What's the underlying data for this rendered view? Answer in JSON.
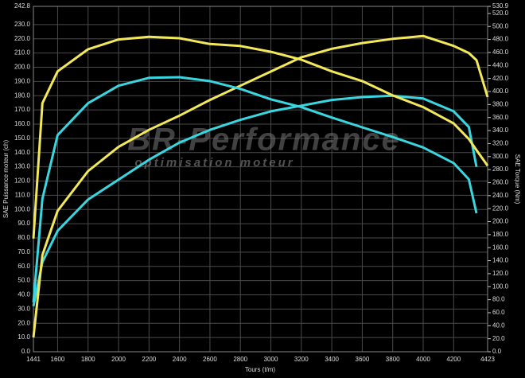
{
  "chart_data": {
    "type": "line",
    "xlabel": "Tours (t/m)",
    "ylabel": "SAE Puissance moteur (ch)",
    "y2label": "SAE Torque (Nm)",
    "annotations": [
      "BR-Performance",
      "optimisation moteur"
    ],
    "grid": true,
    "x": [
      1441,
      1500,
      1600,
      1800,
      2000,
      2200,
      2400,
      2600,
      2800,
      3000,
      3200,
      3400,
      3600,
      3800,
      4000,
      4200,
      4300,
      4350,
      4423
    ],
    "xlim": [
      1441,
      4423
    ],
    "xticks": [
      1441,
      1600,
      1800,
      2000,
      2200,
      2400,
      2600,
      2800,
      3000,
      3200,
      3400,
      3600,
      3800,
      4000,
      4200,
      4423
    ],
    "ylim": [
      0,
      242.8
    ],
    "yticks": [
      {
        "value": 0,
        "label": "0.0"
      },
      {
        "value": 10,
        "label": "10.0"
      },
      {
        "value": 20,
        "label": "20.0"
      },
      {
        "value": 30,
        "label": "30.0"
      },
      {
        "value": 40,
        "label": "40.0"
      },
      {
        "value": 50,
        "label": "50.0"
      },
      {
        "value": 60,
        "label": "60.0"
      },
      {
        "value": 70,
        "label": "70.0"
      },
      {
        "value": 80,
        "label": "80.0"
      },
      {
        "value": 90,
        "label": "90.0"
      },
      {
        "value": 100,
        "label": "100.0"
      },
      {
        "value": 110,
        "label": "110.0"
      },
      {
        "value": 120,
        "label": "120.0"
      },
      {
        "value": 130,
        "label": "130.0"
      },
      {
        "value": 140,
        "label": "140.0"
      },
      {
        "value": 150,
        "label": "150.0"
      },
      {
        "value": 160,
        "label": "160.0"
      },
      {
        "value": 170,
        "label": "170.0"
      },
      {
        "value": 180,
        "label": "180.0"
      },
      {
        "value": 190,
        "label": "190.0"
      },
      {
        "value": 200,
        "label": "200.0"
      },
      {
        "value": 210,
        "label": "210.0"
      },
      {
        "value": 220,
        "label": "220.0"
      },
      {
        "value": 230,
        "label": "230.0"
      },
      242.8
    ],
    "y2lim": [
      0,
      530.9
    ],
    "y2ticks": [
      {
        "value": 0,
        "label": "0.0"
      },
      {
        "value": 20,
        "label": "20.0"
      },
      {
        "value": 40,
        "label": "40.0"
      },
      {
        "value": 60,
        "label": "60.0"
      },
      {
        "value": 80,
        "label": "80.0"
      },
      {
        "value": 100,
        "label": "100.0"
      },
      {
        "value": 120,
        "label": "120.0"
      },
      {
        "value": 140,
        "label": "140.0"
      },
      {
        "value": 160,
        "label": "160.0"
      },
      {
        "value": 180,
        "label": "180.0"
      },
      {
        "value": 200,
        "label": "200.0"
      },
      {
        "value": 220,
        "label": "220.0"
      },
      {
        "value": 240,
        "label": "240.0"
      },
      {
        "value": 260,
        "label": "260.0"
      },
      {
        "value": 280,
        "label": "280.0"
      },
      {
        "value": 300,
        "label": "300.0"
      },
      {
        "value": 320,
        "label": "320.0"
      },
      {
        "value": 340,
        "label": "340.0"
      },
      {
        "value": 360,
        "label": "360.0"
      },
      {
        "value": 380,
        "label": "380.0"
      },
      {
        "value": 400,
        "label": "400.0"
      },
      {
        "value": 420,
        "label": "420.0"
      },
      {
        "value": 440,
        "label": "440.0"
      },
      {
        "value": 460,
        "label": "460.0"
      },
      {
        "value": 480,
        "label": "480.0"
      },
      {
        "value": 500,
        "label": "500.0"
      },
      {
        "value": 520,
        "label": "520.0"
      },
      530.9
    ],
    "series": [
      {
        "color": "#3ad6e0",
        "values": [
          32,
          63,
          85,
          107,
          121,
          135,
          147,
          156,
          163,
          169,
          173,
          177,
          179,
          180,
          178,
          169,
          158,
          130,
          null
        ]
      },
      {
        "color": "#f2e85a",
        "values": [
          10,
          68,
          99,
          127,
          144,
          156,
          166,
          177,
          187,
          197,
          207,
          213,
          217,
          220,
          222,
          215,
          210,
          205,
          179
        ]
      },
      {
        "color": "#3ad6e0",
        "axis": "y2",
        "values": [
          76,
          235,
          333,
          382,
          409,
          421,
          422,
          416,
          404,
          388,
          376,
          360,
          345,
          330,
          314,
          290,
          265,
          213,
          null
        ]
      },
      {
        "color": "#f2e85a",
        "axis": "y2",
        "values": [
          174,
          382,
          431,
          465,
          480,
          484,
          482,
          473,
          470,
          461,
          449,
          431,
          416,
          394,
          376,
          351,
          327,
          310,
          286
        ]
      }
    ]
  }
}
